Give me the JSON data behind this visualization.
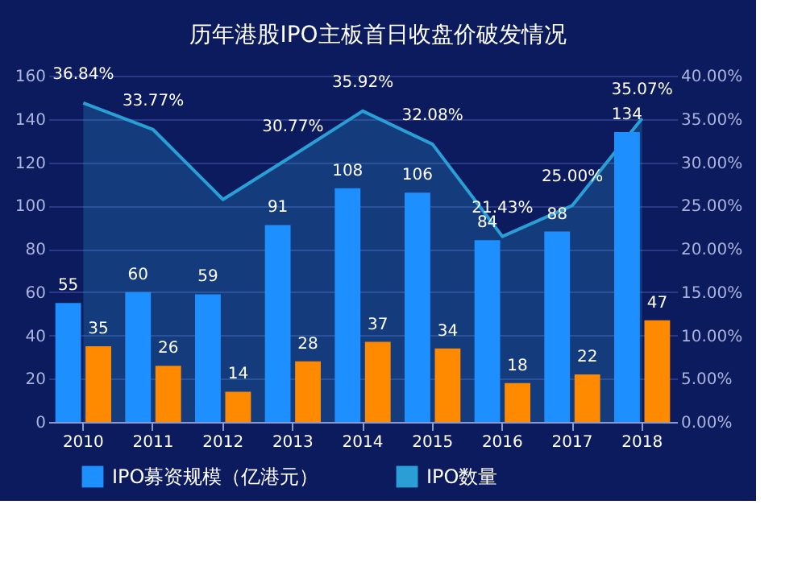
{
  "chart_data": {
    "type": "bar",
    "title": "历年港股IPO主板首日收盘价破发情况",
    "categories": [
      "2010",
      "2011",
      "2012",
      "2013",
      "2014",
      "2015",
      "2016",
      "2017",
      "2018"
    ],
    "series": [
      {
        "name": "IPO募资规模（亿港元）",
        "color": "#1e8fff",
        "values": [
          55,
          60,
          59,
          91,
          108,
          106,
          84,
          88,
          134
        ]
      },
      {
        "color": "#ff8a00",
        "values": [
          35,
          26,
          14,
          28,
          37,
          34,
          18,
          22,
          47
        ]
      },
      {
        "name": "IPO数量",
        "type": "area",
        "axis": "y2",
        "color": "#2a9fd6",
        "values": [
          36.84,
          33.77,
          25.7,
          30.77,
          35.92,
          32.08,
          21.43,
          25.0,
          35.07
        ],
        "value_labels": [
          "36.84%",
          "33.77%",
          null,
          "30.77%",
          "35.92%",
          "32.08%",
          "21.43%",
          "25.00%",
          "35.07%"
        ]
      }
    ],
    "data_labels": true,
    "ylim": [
      0,
      160
    ],
    "yticks": [
      0,
      20,
      40,
      60,
      80,
      100,
      120,
      140,
      160
    ],
    "y2lim": [
      0,
      40
    ],
    "y2ticks": [
      {
        "value": 0,
        "label": "0.00%"
      },
      {
        "value": 5,
        "label": "5.00%"
      },
      {
        "value": 10,
        "label": "10.00%"
      },
      {
        "value": 15,
        "label": "15.00%"
      },
      {
        "value": 20,
        "label": "20.00%"
      },
      {
        "value": 25,
        "label": "25.00%"
      },
      {
        "value": 30,
        "label": "30.00%"
      },
      {
        "value": 35,
        "label": "35.00%"
      },
      {
        "value": 40,
        "label": "40.00%"
      }
    ],
    "grid": "y",
    "legend": "bottom"
  }
}
